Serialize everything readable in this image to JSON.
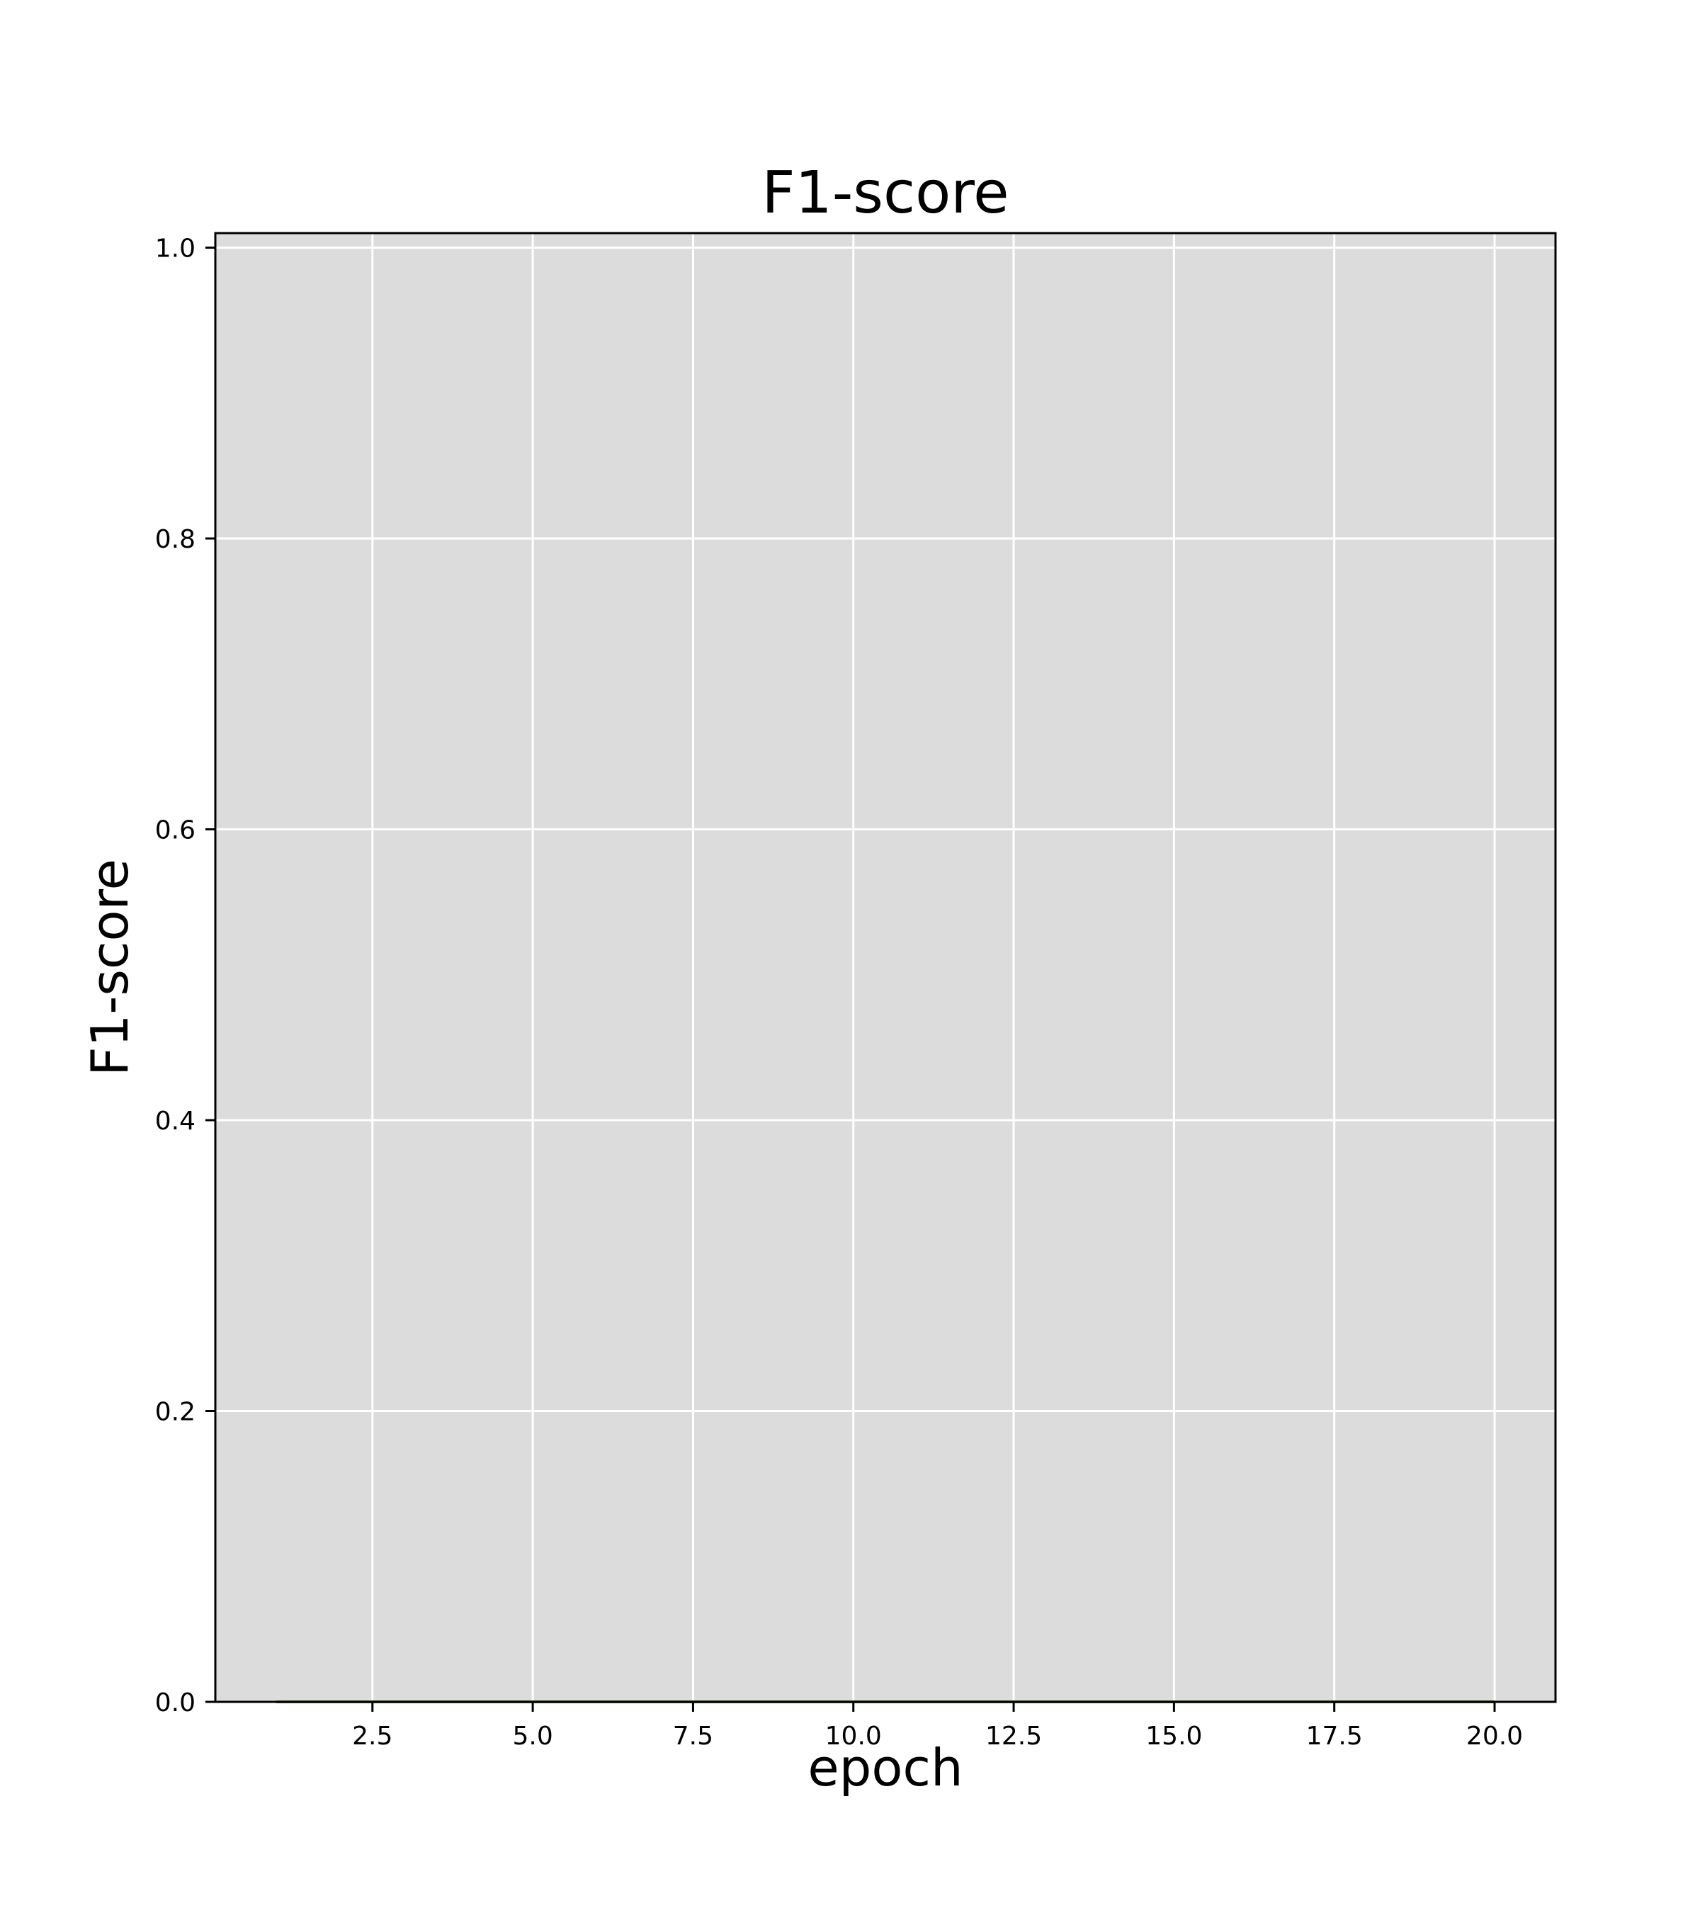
{
  "chart_data": {
    "type": "line",
    "title": "F1-score",
    "xlabel": "epoch",
    "ylabel": "F1-score",
    "xlim": [
      0.05,
      20.95
    ],
    "ylim": [
      0.0,
      1.01
    ],
    "xticks": [
      2.5,
      5.0,
      7.5,
      10.0,
      12.5,
      15.0,
      17.5,
      20.0
    ],
    "xtick_labels": [
      "2.5",
      "5.0",
      "7.5",
      "10.0",
      "12.5",
      "15.0",
      "17.5",
      "20.0"
    ],
    "yticks": [
      0.0,
      0.2,
      0.4,
      0.6,
      0.8,
      1.0
    ],
    "ytick_labels": [
      "0.0",
      "0.2",
      "0.4",
      "0.6",
      "0.8",
      "1.0"
    ],
    "grid": true,
    "colors": {
      "plot_background": "#dcdcdc",
      "grid": "#ffffff",
      "line": "#556b2f"
    },
    "series": [
      {
        "x": [
          1,
          2,
          3,
          4,
          5,
          6,
          7,
          8,
          9,
          10,
          11,
          12,
          13,
          14,
          15,
          16,
          17,
          18,
          19,
          20
        ],
        "values": [
          0,
          0,
          0,
          0,
          0,
          0,
          0,
          0,
          0,
          0,
          0,
          0,
          0,
          0,
          0,
          0,
          0,
          0,
          0,
          0
        ]
      }
    ]
  }
}
